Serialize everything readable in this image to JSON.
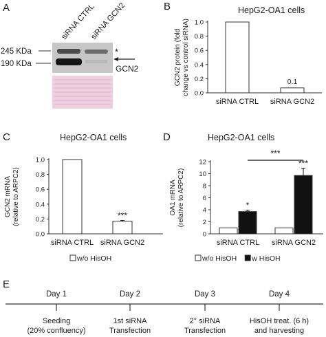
{
  "panel_a": {
    "letter": "A",
    "lanes": [
      "siRNA CTRL",
      "siRNA GCN2"
    ],
    "markers": [
      "245 KDa",
      "190 KDa"
    ],
    "asterisk": "*",
    "band_label": "GCN2"
  },
  "panel_e": {
    "letter": "E",
    "steps": [
      {
        "day": "Day 1",
        "line1": "Seeding",
        "line2": "(20% confluency)"
      },
      {
        "day": "Day 2",
        "line1": "1st siRNA",
        "line2": "Transfection"
      },
      {
        "day": "Day 3",
        "line1": "2° siRNA",
        "line2": "Transfection"
      },
      {
        "day": "Day 4",
        "line1": "HisOH treat. (6 h)",
        "line2": "and harvesting"
      }
    ]
  },
  "colors": {
    "bar_open": "#ffffff",
    "bar_filled": "#111111",
    "stroke": "#333333",
    "ponceau": "#eecfe0"
  },
  "chart_data": [
    {
      "id": "B",
      "letter": "B",
      "type": "bar",
      "title": "HepG2-OA1 cells",
      "ylabel": [
        "GCN2 protein (fold",
        "change vs control siRNA)"
      ],
      "ylim": [
        0,
        1.0
      ],
      "yticks": [
        0,
        0.2,
        0.4,
        0.6,
        0.8,
        1.0
      ],
      "categories": [
        "siRNA CTRL",
        "siRNA GCN2"
      ],
      "series": [
        {
          "values": [
            1.0,
            0.07
          ],
          "fill": "open"
        }
      ],
      "annotations": [
        {
          "cat": 1,
          "text": "0.1"
        }
      ]
    },
    {
      "id": "C",
      "letter": "C",
      "type": "bar",
      "title": "HepG2-OA1 cells",
      "ylabel": [
        "GCN2 mRNA",
        "(relative to ARPC2)"
      ],
      "ylim": [
        0,
        1.0
      ],
      "yticks": [
        0,
        0.2,
        0.4,
        0.6,
        0.8,
        1.0
      ],
      "categories": [
        "siRNA CTRL",
        "siRNA GCN2"
      ],
      "series": [
        {
          "name": "w/o HisOH",
          "values": [
            1.0,
            0.17
          ],
          "errors": [
            0,
            0.01
          ],
          "fill": "open"
        }
      ],
      "annotations": [
        {
          "cat": 1,
          "series": 0,
          "text": "***"
        }
      ],
      "legend": [
        "w/o HisOH"
      ]
    },
    {
      "id": "D",
      "letter": "D",
      "type": "bar",
      "title": "HepG2-OA1 cells",
      "ylabel": [
        "OA1 mRNA",
        "(relative to ARPC2)"
      ],
      "ylim": [
        0,
        12
      ],
      "yticks": [
        0,
        2,
        4,
        6,
        8,
        10,
        12
      ],
      "categories": [
        "siRNA CTRL",
        "siRNA GCN2"
      ],
      "series": [
        {
          "name": "w/o HisOH",
          "values": [
            1.0,
            1.0
          ],
          "errors": [
            0,
            0
          ],
          "fill": "open"
        },
        {
          "name": "w HisOH",
          "values": [
            3.7,
            9.7
          ],
          "errors": [
            0.25,
            1.2
          ],
          "fill": "filled"
        }
      ],
      "annotations": [
        {
          "cat": 0,
          "series": 1,
          "text": "*"
        },
        {
          "cat": 1,
          "series": 1,
          "text": "***"
        }
      ],
      "bracket": "***",
      "legend": [
        "w/o HisOH",
        "w HisOH"
      ]
    }
  ]
}
